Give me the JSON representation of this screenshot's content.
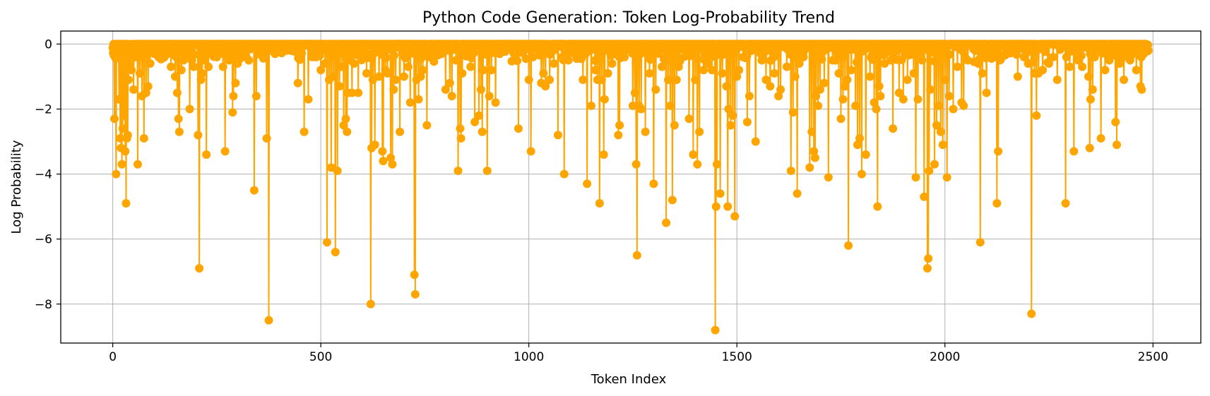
{
  "chart_data": {
    "type": "line",
    "title": "Python Code Generation: Token Log-Probability Trend",
    "xlabel": "Token Index",
    "ylabel": "Log Probability",
    "xlim": [
      -125,
      2615
    ],
    "ylim": [
      -9.2,
      0.4
    ],
    "xticks": [
      0,
      500,
      1000,
      1500,
      2000,
      2500
    ],
    "yticks": [
      0,
      -2,
      -4,
      -6,
      -8
    ],
    "grid": true,
    "color": "#FFA500",
    "marker": "circle",
    "n_tokens": 2490,
    "x_max": 2489,
    "background_min": -0.6,
    "dips": [
      [
        4,
        -2.3
      ],
      [
        8,
        -4.0
      ],
      [
        12,
        -0.4
      ],
      [
        15,
        -1.7
      ],
      [
        18,
        -2.9
      ],
      [
        20,
        -3.2
      ],
      [
        22,
        -3.7
      ],
      [
        24,
        -2.6
      ],
      [
        26,
        -2.2
      ],
      [
        28,
        -1.8
      ],
      [
        30,
        -3.3
      ],
      [
        32,
        -4.9
      ],
      [
        34,
        -2.9
      ],
      [
        36,
        -2.8
      ],
      [
        38,
        -1.1
      ],
      [
        40,
        -0.6
      ],
      [
        45,
        -0.8
      ],
      [
        50,
        -1.4
      ],
      [
        55,
        -0.4
      ],
      [
        60,
        -3.7
      ],
      [
        65,
        -0.9
      ],
      [
        70,
        -1.6
      ],
      [
        75,
        -2.9
      ],
      [
        80,
        -1.5
      ],
      [
        85,
        -1.3
      ],
      [
        90,
        -0.6
      ],
      [
        100,
        -0.3
      ],
      [
        110,
        -0.4
      ],
      [
        120,
        -0.2
      ],
      [
        130,
        -0.3
      ],
      [
        140,
        -0.7
      ],
      [
        150,
        -1.0
      ],
      [
        155,
        -1.5
      ],
      [
        158,
        -2.3
      ],
      [
        160,
        -2.7
      ],
      [
        165,
        -0.8
      ],
      [
        170,
        -0.5
      ],
      [
        180,
        -0.4
      ],
      [
        185,
        -2.0
      ],
      [
        190,
        -0.5
      ],
      [
        195,
        -0.7
      ],
      [
        205,
        -2.8
      ],
      [
        208,
        -6.9
      ],
      [
        212,
        -1.1
      ],
      [
        215,
        -0.9
      ],
      [
        220,
        -0.5
      ],
      [
        225,
        -3.4
      ],
      [
        230,
        -0.7
      ],
      [
        240,
        -0.3
      ],
      [
        250,
        -0.4
      ],
      [
        265,
        -0.7
      ],
      [
        270,
        -3.3
      ],
      [
        280,
        -0.5
      ],
      [
        288,
        -2.1
      ],
      [
        290,
        -1.6
      ],
      [
        295,
        -1.2
      ],
      [
        300,
        -0.6
      ],
      [
        310,
        -0.4
      ],
      [
        340,
        -4.5
      ],
      [
        345,
        -1.6
      ],
      [
        350,
        -0.3
      ],
      [
        370,
        -2.9
      ],
      [
        375,
        -8.5
      ],
      [
        380,
        -0.2
      ],
      [
        445,
        -1.2
      ],
      [
        460,
        -2.7
      ],
      [
        470,
        -1.7
      ],
      [
        480,
        -0.4
      ],
      [
        500,
        -0.8
      ],
      [
        510,
        -0.6
      ],
      [
        515,
        -6.1
      ],
      [
        520,
        -1.1
      ],
      [
        525,
        -3.8
      ],
      [
        530,
        -1.0
      ],
      [
        535,
        -6.4
      ],
      [
        540,
        -3.9
      ],
      [
        545,
        -1.3
      ],
      [
        550,
        -0.7
      ],
      [
        555,
        -2.5
      ],
      [
        560,
        -2.3
      ],
      [
        563,
        -2.7
      ],
      [
        565,
        -1.5
      ],
      [
        570,
        -0.5
      ],
      [
        575,
        -1.5
      ],
      [
        580,
        -0.6
      ],
      [
        590,
        -1.5
      ],
      [
        600,
        -0.3
      ],
      [
        610,
        -0.9
      ],
      [
        620,
        -8.0
      ],
      [
        622,
        -3.2
      ],
      [
        625,
        -1.1
      ],
      [
        630,
        -3.1
      ],
      [
        640,
        -1.0
      ],
      [
        648,
        -3.3
      ],
      [
        650,
        -3.6
      ],
      [
        655,
        -0.8
      ],
      [
        660,
        -0.9
      ],
      [
        668,
        -3.5
      ],
      [
        672,
        -3.7
      ],
      [
        675,
        -1.4
      ],
      [
        680,
        -1.1
      ],
      [
        690,
        -2.7
      ],
      [
        700,
        -1.0
      ],
      [
        710,
        -0.7
      ],
      [
        715,
        -1.8
      ],
      [
        725,
        -7.1
      ],
      [
        727,
        -7.7
      ],
      [
        730,
        -1.1
      ],
      [
        735,
        -1.7
      ],
      [
        740,
        -1.0
      ],
      [
        745,
        -0.8
      ],
      [
        755,
        -2.5
      ],
      [
        760,
        -0.4
      ],
      [
        790,
        -0.3
      ],
      [
        800,
        -1.4
      ],
      [
        810,
        -1.2
      ],
      [
        815,
        -1.6
      ],
      [
        825,
        -0.5
      ],
      [
        830,
        -3.9
      ],
      [
        835,
        -2.6
      ],
      [
        837,
        -2.9
      ],
      [
        840,
        -0.9
      ],
      [
        860,
        -0.7
      ],
      [
        870,
        -2.4
      ],
      [
        880,
        -2.2
      ],
      [
        885,
        -1.4
      ],
      [
        888,
        -2.7
      ],
      [
        890,
        -0.8
      ],
      [
        900,
        -3.9
      ],
      [
        905,
        -1.6
      ],
      [
        910,
        -0.8
      ],
      [
        920,
        -1.8
      ],
      [
        930,
        -0.3
      ],
      [
        975,
        -2.6
      ],
      [
        1000,
        -1.1
      ],
      [
        1005,
        -3.3
      ],
      [
        1010,
        -0.4
      ],
      [
        1030,
        -1.2
      ],
      [
        1035,
        -0.9
      ],
      [
        1040,
        -1.3
      ],
      [
        1050,
        -1.1
      ],
      [
        1060,
        -0.6
      ],
      [
        1070,
        -2.8
      ],
      [
        1080,
        -0.4
      ],
      [
        1085,
        -4.0
      ],
      [
        1095,
        -0.5
      ],
      [
        1110,
        -0.3
      ],
      [
        1130,
        -1.1
      ],
      [
        1140,
        -4.3
      ],
      [
        1150,
        -1.9
      ],
      [
        1160,
        -0.8
      ],
      [
        1165,
        -1.1
      ],
      [
        1170,
        -4.9
      ],
      [
        1175,
        -1.1
      ],
      [
        1180,
        -3.4
      ],
      [
        1182,
        -1.7
      ],
      [
        1190,
        -0.9
      ],
      [
        1200,
        -0.6
      ],
      [
        1215,
        -2.8
      ],
      [
        1218,
        -2.5
      ],
      [
        1230,
        -0.4
      ],
      [
        1250,
        -1.9
      ],
      [
        1255,
        -1.5
      ],
      [
        1258,
        -3.7
      ],
      [
        1260,
        -6.5
      ],
      [
        1265,
        -1.9
      ],
      [
        1270,
        -2.0
      ],
      [
        1280,
        -2.7
      ],
      [
        1290,
        -0.9
      ],
      [
        1300,
        -4.3
      ],
      [
        1305,
        -1.4
      ],
      [
        1320,
        -0.7
      ],
      [
        1330,
        -5.5
      ],
      [
        1335,
        -1.1
      ],
      [
        1340,
        -1.9
      ],
      [
        1345,
        -4.8
      ],
      [
        1350,
        -2.5
      ],
      [
        1355,
        -1.1
      ],
      [
        1360,
        -0.7
      ],
      [
        1380,
        -0.3
      ],
      [
        1385,
        -2.3
      ],
      [
        1395,
        -3.4
      ],
      [
        1400,
        -1.1
      ],
      [
        1405,
        -3.7
      ],
      [
        1410,
        -2.7
      ],
      [
        1420,
        -0.8
      ],
      [
        1430,
        -0.6
      ],
      [
        1440,
        -0.8
      ],
      [
        1448,
        -8.8
      ],
      [
        1450,
        -5.0
      ],
      [
        1452,
        -3.7
      ],
      [
        1460,
        -4.6
      ],
      [
        1465,
        -0.9
      ],
      [
        1475,
        -1.3
      ],
      [
        1478,
        -5.0
      ],
      [
        1480,
        -2.0
      ],
      [
        1485,
        -2.5
      ],
      [
        1490,
        -2.2
      ],
      [
        1495,
        -5.3
      ],
      [
        1500,
        -1.0
      ],
      [
        1505,
        -0.8
      ],
      [
        1515,
        -0.4
      ],
      [
        1525,
        -2.4
      ],
      [
        1530,
        -1.6
      ],
      [
        1545,
        -3.0
      ],
      [
        1560,
        -0.5
      ],
      [
        1570,
        -1.1
      ],
      [
        1580,
        -1.3
      ],
      [
        1590,
        -0.9
      ],
      [
        1600,
        -1.6
      ],
      [
        1605,
        -1.4
      ],
      [
        1620,
        -0.7
      ],
      [
        1630,
        -3.9
      ],
      [
        1635,
        -2.1
      ],
      [
        1640,
        -1.0
      ],
      [
        1645,
        -4.6
      ],
      [
        1650,
        -0.6
      ],
      [
        1660,
        -0.4
      ],
      [
        1675,
        -3.8
      ],
      [
        1680,
        -2.7
      ],
      [
        1685,
        -3.3
      ],
      [
        1688,
        -3.5
      ],
      [
        1690,
        -1.6
      ],
      [
        1695,
        -1.9
      ],
      [
        1700,
        -1.4
      ],
      [
        1710,
        -1.2
      ],
      [
        1720,
        -4.1
      ],
      [
        1730,
        -0.5
      ],
      [
        1745,
        -0.9
      ],
      [
        1750,
        -2.3
      ],
      [
        1755,
        -1.7
      ],
      [
        1760,
        -1.3
      ],
      [
        1765,
        -1.1
      ],
      [
        1768,
        -6.2
      ],
      [
        1775,
        -0.8
      ],
      [
        1785,
        -1.9
      ],
      [
        1790,
        -3.1
      ],
      [
        1795,
        -2.9
      ],
      [
        1800,
        -4.0
      ],
      [
        1810,
        -3.4
      ],
      [
        1820,
        -1.0
      ],
      [
        1830,
        -1.8
      ],
      [
        1835,
        -2.0
      ],
      [
        1838,
        -5.0
      ],
      [
        1842,
        -1.3
      ],
      [
        1845,
        -1.6
      ],
      [
        1855,
        -0.6
      ],
      [
        1870,
        -0.5
      ],
      [
        1875,
        -2.6
      ],
      [
        1890,
        -1.5
      ],
      [
        1900,
        -1.7
      ],
      [
        1910,
        -1.1
      ],
      [
        1925,
        -0.9
      ],
      [
        1930,
        -4.1
      ],
      [
        1935,
        -1.7
      ],
      [
        1945,
        -0.5
      ],
      [
        1950,
        -4.7
      ],
      [
        1958,
        -6.9
      ],
      [
        1960,
        -6.6
      ],
      [
        1962,
        -3.9
      ],
      [
        1965,
        -1.4
      ],
      [
        1975,
        -3.7
      ],
      [
        1980,
        -2.5
      ],
      [
        1985,
        -1.9
      ],
      [
        1990,
        -2.7
      ],
      [
        1995,
        -3.1
      ],
      [
        2000,
        -1.1
      ],
      [
        2005,
        -4.1
      ],
      [
        2010,
        -1.6
      ],
      [
        2020,
        -2.0
      ],
      [
        2030,
        -0.7
      ],
      [
        2040,
        -1.8
      ],
      [
        2045,
        -1.9
      ],
      [
        2055,
        -0.5
      ],
      [
        2080,
        -0.6
      ],
      [
        2085,
        -6.1
      ],
      [
        2090,
        -0.9
      ],
      [
        2100,
        -1.5
      ],
      [
        2120,
        -0.4
      ],
      [
        2125,
        -4.9
      ],
      [
        2128,
        -3.3
      ],
      [
        2132,
        -0.5
      ],
      [
        2150,
        -0.2
      ],
      [
        2175,
        -1.0
      ],
      [
        2190,
        -0.4
      ],
      [
        2200,
        -0.6
      ],
      [
        2208,
        -8.3
      ],
      [
        2215,
        -0.9
      ],
      [
        2220,
        -2.2
      ],
      [
        2225,
        -0.9
      ],
      [
        2235,
        -0.8
      ],
      [
        2250,
        -0.6
      ],
      [
        2260,
        -0.4
      ],
      [
        2270,
        -1.1
      ],
      [
        2290,
        -4.9
      ],
      [
        2300,
        -0.7
      ],
      [
        2310,
        -3.3
      ],
      [
        2320,
        -0.5
      ],
      [
        2330,
        -0.7
      ],
      [
        2345,
        -1.0
      ],
      [
        2348,
        -3.2
      ],
      [
        2350,
        -1.7
      ],
      [
        2355,
        -1.4
      ],
      [
        2360,
        -0.4
      ],
      [
        2375,
        -2.9
      ],
      [
        2385,
        -0.8
      ],
      [
        2395,
        -0.5
      ],
      [
        2410,
        -2.4
      ],
      [
        2413,
        -3.1
      ],
      [
        2420,
        -0.6
      ],
      [
        2430,
        -1.1
      ],
      [
        2445,
        -0.5
      ],
      [
        2460,
        -0.8
      ],
      [
        2470,
        -1.3
      ],
      [
        2473,
        -1.4
      ],
      [
        2478,
        -0.3
      ],
      [
        2485,
        -0.1
      ]
    ]
  }
}
